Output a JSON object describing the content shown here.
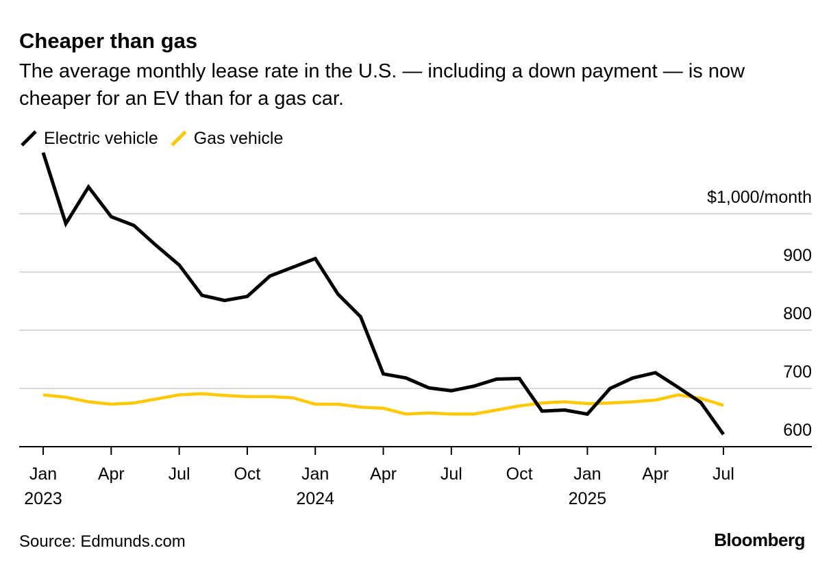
{
  "header": {
    "title": "Cheaper than gas",
    "subtitle": "The average monthly lease rate in the U.S. — including a down payment — is now cheaper for an EV than for a gas car."
  },
  "footer": {
    "source": "Source: Edmunds.com",
    "brand": "Bloomberg"
  },
  "colors": {
    "ev": "#000000",
    "gas": "#ffc800",
    "grid": "#d9d9d9",
    "axis": "#000000"
  },
  "chart_data": {
    "type": "line",
    "title": "Cheaper than gas",
    "subtitle": "The average monthly lease rate in the U.S. — including a down payment — is now cheaper for an EV than for a gas car.",
    "xlabel": "",
    "ylabel": "",
    "ylim": [
      585,
      1000
    ],
    "y_unit_label": "$1,000/month",
    "y_ticks": [
      600,
      700,
      800,
      900,
      1000
    ],
    "y_tick_labels": [
      "600",
      "700",
      "800",
      "900",
      "$1,000/month"
    ],
    "x_ticks": [
      {
        "index": 0,
        "label": "Jan",
        "year": "2023"
      },
      {
        "index": 3,
        "label": "Apr",
        "year": ""
      },
      {
        "index": 6,
        "label": "Jul",
        "year": ""
      },
      {
        "index": 9,
        "label": "Oct",
        "year": ""
      },
      {
        "index": 12,
        "label": "Jan",
        "year": "2024"
      },
      {
        "index": 15,
        "label": "Apr",
        "year": ""
      },
      {
        "index": 18,
        "label": "Jul",
        "year": ""
      },
      {
        "index": 21,
        "label": "Oct",
        "year": ""
      },
      {
        "index": 24,
        "label": "Jan",
        "year": "2025"
      },
      {
        "index": 27,
        "label": "Apr",
        "year": ""
      },
      {
        "index": 30,
        "label": "Jul",
        "year": ""
      }
    ],
    "x": [
      "2023-01",
      "2023-02",
      "2023-03",
      "2023-04",
      "2023-05",
      "2023-06",
      "2023-07",
      "2023-08",
      "2023-09",
      "2023-10",
      "2023-11",
      "2023-12",
      "2024-01",
      "2024-02",
      "2024-03",
      "2024-04",
      "2024-05",
      "2024-06",
      "2024-07",
      "2024-08",
      "2024-09",
      "2024-10",
      "2024-11",
      "2024-12",
      "2025-01",
      "2025-02",
      "2025-03",
      "2025-04",
      "2025-05",
      "2025-06",
      "2025-07"
    ],
    "series": [
      {
        "name": "Electric vehicle",
        "color": "#000000",
        "values": [
          1105,
          983,
          1046,
          995,
          980,
          945,
          912,
          860,
          851,
          858,
          893,
          908,
          923,
          862,
          823,
          725,
          718,
          701,
          696,
          704,
          716,
          717,
          661,
          663,
          656,
          700,
          718,
          727,
          702,
          676,
          621
        ]
      },
      {
        "name": "Gas vehicle",
        "color": "#ffc800",
        "values": [
          689,
          685,
          677,
          673,
          675,
          682,
          689,
          691,
          688,
          686,
          686,
          684,
          673,
          673,
          668,
          666,
          656,
          658,
          656,
          656,
          663,
          670,
          675,
          677,
          674,
          675,
          677,
          680,
          689,
          683,
          671
        ]
      }
    ],
    "grid": true,
    "legend_position": "top-left"
  }
}
